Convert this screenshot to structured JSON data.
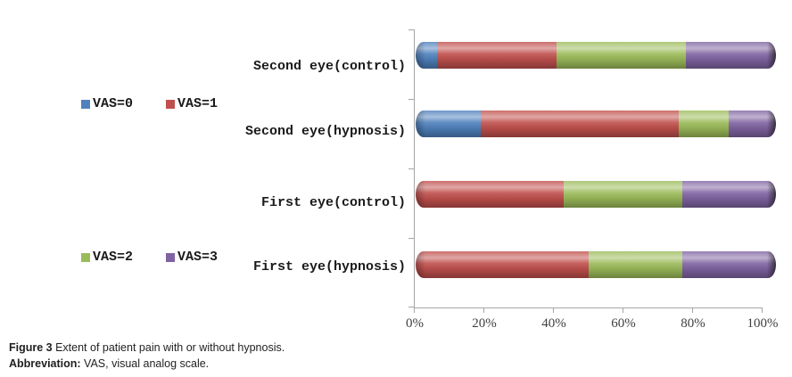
{
  "chart_data": {
    "type": "bar",
    "orientation": "horizontal",
    "stacked": true,
    "grid": false,
    "categories": [
      "Second eye(control)",
      "Second eye(hypnosis)",
      "First eye(control)",
      "First eye(hypnosis)"
    ],
    "series": [
      {
        "name": "VAS=0",
        "color": "#4f81bd",
        "values": [
          6,
          18,
          0,
          0
        ]
      },
      {
        "name": "VAS=1",
        "color": "#c0504d",
        "values": [
          33,
          55,
          41,
          48
        ]
      },
      {
        "name": "VAS=2",
        "color": "#9bbb59",
        "values": [
          36,
          14,
          33,
          26
        ]
      },
      {
        "name": "VAS=3",
        "color": "#8064a2",
        "values": [
          25,
          13,
          26,
          26
        ]
      }
    ],
    "x_ticks": [
      "0%",
      "20%",
      "40%",
      "60%",
      "80%",
      "100%"
    ],
    "xlim": [
      0,
      100
    ],
    "legend_position": "left, two rows (VAS=0/VAS=1 upper, VAS=2/VAS=3 lower)"
  },
  "caption": {
    "line1_bold": "Figure 3",
    "line1_text": " Extent of patient pain with or without hypnosis.",
    "line2_bold": "Abbreviation:",
    "line2_text": " VAS, visual analog scale."
  },
  "colors": {
    "axis": "#a6a6a6",
    "tick_label": "#404040",
    "text": "#1a1a1a"
  }
}
